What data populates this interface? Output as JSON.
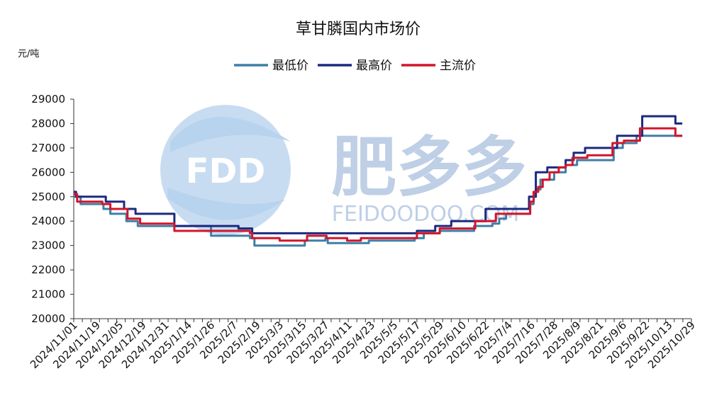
{
  "chart_data": {
    "type": "line",
    "title": "草甘膦国内市场价",
    "ylabel": "元/吨",
    "ylim": [
      20000,
      29000
    ],
    "yticks": [
      20000,
      21000,
      22000,
      23000,
      24000,
      25000,
      26000,
      27000,
      28000,
      29000
    ],
    "xticks": [
      "2024/11/01",
      "2024/11/19",
      "2024/12/05",
      "2024/12/19",
      "2024/12/31",
      "2025/1/14",
      "2025/1/26",
      "2025/2/7",
      "2025/2/19",
      "2025/3/3",
      "2025/3/15",
      "2025/3/27",
      "2025/4/11",
      "2025/4/23",
      "2025/5/5",
      "2025/5/17",
      "2025/5/29",
      "2025/6/10",
      "2025/6/22",
      "2025/7/4",
      "2025/7/16",
      "2025/7/28",
      "2025/8/9",
      "2025/8/21",
      "2025/9/6",
      "2025/9/22",
      "2025/10/13",
      "2025/10/29"
    ],
    "legend_position": "top-center",
    "grid": false,
    "series": [
      {
        "name": "最低价",
        "color": "#3f7fa6",
        "points": [
          [
            0,
            25000
          ],
          [
            0.3,
            24700
          ],
          [
            1.3,
            24500
          ],
          [
            1.6,
            24300
          ],
          [
            2.3,
            24000
          ],
          [
            2.8,
            23800
          ],
          [
            4.3,
            23800
          ],
          [
            6.0,
            23400
          ],
          [
            7.7,
            23300
          ],
          [
            7.9,
            23000
          ],
          [
            9.7,
            23000
          ],
          [
            10.1,
            23200
          ],
          [
            11.0,
            23300
          ],
          [
            11.1,
            23100
          ],
          [
            12.7,
            23100
          ],
          [
            12.9,
            23200
          ],
          [
            14.9,
            23300
          ],
          [
            15.3,
            23500
          ],
          [
            16.0,
            23600
          ],
          [
            17.5,
            23800
          ],
          [
            18.3,
            23900
          ],
          [
            18.6,
            24100
          ],
          [
            18.9,
            24300
          ],
          [
            19.8,
            24300
          ],
          [
            19.95,
            24700
          ],
          [
            20.1,
            25000
          ],
          [
            20.2,
            25300
          ],
          [
            20.4,
            25700
          ],
          [
            21.0,
            26000
          ],
          [
            21.5,
            26300
          ],
          [
            22.0,
            26500
          ],
          [
            23.5,
            26500
          ],
          [
            23.6,
            27000
          ],
          [
            24.0,
            27200
          ],
          [
            24.4,
            27200
          ],
          [
            24.6,
            27500
          ],
          [
            26.2,
            27500
          ],
          [
            26.6,
            27500
          ]
        ]
      },
      {
        "name": "最高价",
        "color": "#1b2a80",
        "points": [
          [
            0,
            25200
          ],
          [
            0.1,
            25000
          ],
          [
            1.3,
            25000
          ],
          [
            1.4,
            24800
          ],
          [
            2.1,
            24800
          ],
          [
            2.2,
            24500
          ],
          [
            2.6,
            24500
          ],
          [
            2.7,
            24300
          ],
          [
            4.3,
            24300
          ],
          [
            4.4,
            23800
          ],
          [
            7.1,
            23800
          ],
          [
            7.2,
            23700
          ],
          [
            7.7,
            23700
          ],
          [
            7.8,
            23500
          ],
          [
            12.9,
            23500
          ],
          [
            14.9,
            23500
          ],
          [
            15.0,
            23600
          ],
          [
            15.7,
            23600
          ],
          [
            15.8,
            23800
          ],
          [
            16.4,
            23800
          ],
          [
            16.5,
            24000
          ],
          [
            17.9,
            24000
          ],
          [
            18.0,
            24500
          ],
          [
            19.8,
            24500
          ],
          [
            19.9,
            25000
          ],
          [
            20.15,
            25000
          ],
          [
            20.2,
            26000
          ],
          [
            20.6,
            26000
          ],
          [
            20.7,
            26200
          ],
          [
            21.4,
            26200
          ],
          [
            21.5,
            26500
          ],
          [
            21.8,
            26500
          ],
          [
            21.85,
            26800
          ],
          [
            22.3,
            26800
          ],
          [
            22.35,
            27000
          ],
          [
            23.7,
            27000
          ],
          [
            23.75,
            27500
          ],
          [
            24.8,
            27500
          ],
          [
            24.85,
            28300
          ],
          [
            26.2,
            28300
          ],
          [
            26.3,
            28000
          ],
          [
            26.6,
            28000
          ]
        ]
      },
      {
        "name": "主流价",
        "color": "#d3152b",
        "points": [
          [
            0,
            25100
          ],
          [
            0.15,
            24800
          ],
          [
            1.2,
            24800
          ],
          [
            1.25,
            24700
          ],
          [
            1.55,
            24700
          ],
          [
            1.6,
            24500
          ],
          [
            2.3,
            24500
          ],
          [
            2.35,
            24100
          ],
          [
            2.85,
            24100
          ],
          [
            2.9,
            23900
          ],
          [
            4.3,
            23900
          ],
          [
            4.4,
            23600
          ],
          [
            7.7,
            23500
          ],
          [
            7.8,
            23300
          ],
          [
            8.9,
            23300
          ],
          [
            9.0,
            23200
          ],
          [
            10.1,
            23200
          ],
          [
            10.2,
            23400
          ],
          [
            11.0,
            23400
          ],
          [
            11.05,
            23300
          ],
          [
            11.9,
            23300
          ],
          [
            11.95,
            23200
          ],
          [
            12.5,
            23200
          ],
          [
            12.55,
            23300
          ],
          [
            14.9,
            23300
          ],
          [
            15.0,
            23500
          ],
          [
            15.9,
            23500
          ],
          [
            16.0,
            23700
          ],
          [
            17.5,
            23700
          ],
          [
            17.55,
            24000
          ],
          [
            18.4,
            24000
          ],
          [
            18.45,
            24300
          ],
          [
            19.9,
            24300
          ],
          [
            19.95,
            24800
          ],
          [
            20.1,
            25200
          ],
          [
            20.3,
            25400
          ],
          [
            20.5,
            25700
          ],
          [
            20.8,
            26000
          ],
          [
            21.2,
            26200
          ],
          [
            21.5,
            26300
          ],
          [
            21.8,
            26600
          ],
          [
            22.4,
            26600
          ],
          [
            22.45,
            26700
          ],
          [
            23.5,
            26700
          ],
          [
            23.55,
            27200
          ],
          [
            24.0,
            27200
          ],
          [
            24.05,
            27300
          ],
          [
            24.7,
            27300
          ],
          [
            24.75,
            27800
          ],
          [
            26.3,
            27800
          ],
          [
            26.3,
            27500
          ],
          [
            26.6,
            27500
          ]
        ]
      }
    ]
  },
  "watermark": {
    "logo_text": "FDD",
    "brand_cn": "肥多多",
    "brand_url": "FEIDOODOO.COM"
  }
}
